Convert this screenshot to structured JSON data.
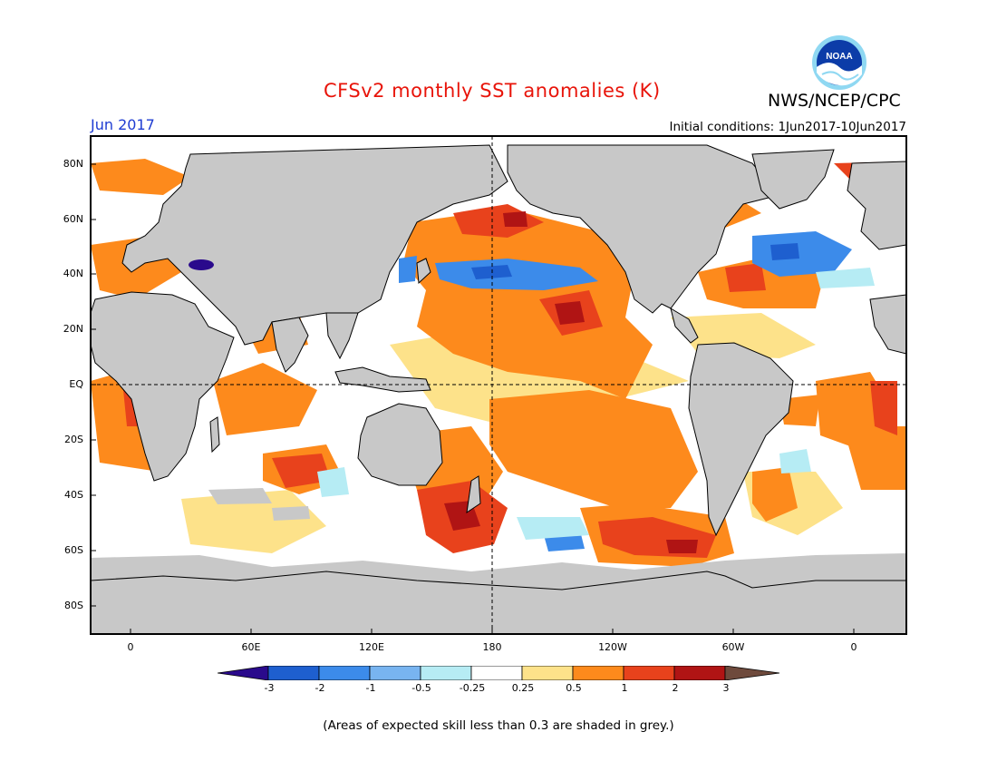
{
  "header": {
    "title": "CFSv2 monthly SST anomalies (K)",
    "agency": "NWS/NCEP/CPC",
    "logo_text": "NOAA",
    "month": "Jun 2017",
    "initial_conditions": "Initial conditions: 1Jun2017-10Jun2017"
  },
  "map": {
    "lat_labels": [
      "80N",
      "60N",
      "40N",
      "20N",
      "EQ",
      "20S",
      "40S",
      "60S",
      "80S"
    ],
    "lon_labels": [
      "0",
      "60E",
      "120E",
      "180",
      "120W",
      "60W",
      "0"
    ],
    "land_color": "#c8c8c8",
    "reference_lines": [
      "Equator",
      "180°"
    ]
  },
  "colorbar": {
    "ticks": [
      "-3",
      "-2",
      "-1",
      "-0.5",
      "-0.25",
      "0.25",
      "0.5",
      "1",
      "2",
      "3"
    ],
    "colors": [
      "#2a0a8c",
      "#1e5fcf",
      "#3c8bea",
      "#78b4f0",
      "#b6ecf4",
      "#ffffff",
      "#fde28a",
      "#fd8a1c",
      "#e8421c",
      "#b01414",
      "#6e4a3c"
    ]
  },
  "footnote": "(Areas of expected skill less than 0.3 are shaded in grey.)",
  "colors": {
    "title": "#e8140a",
    "month": "#1e3cd2",
    "ocean_neutral": "#ffffff",
    "warm_moderate": "#fd8a1c",
    "warm_strong": "#e8421c",
    "cool_moderate": "#3c8bea"
  }
}
